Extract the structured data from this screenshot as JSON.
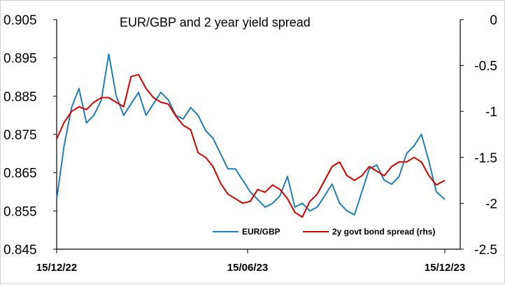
{
  "chart_data": {
    "type": "line",
    "title": "EUR/GBP and 2 year yield spread",
    "xlabel": "",
    "ylabel": "",
    "x_ticks": [
      "15/12/22",
      "15/06/23",
      "15/12/23"
    ],
    "y_left": {
      "range": [
        0.845,
        0.905
      ],
      "ticks": [
        "0.905",
        "0.895",
        "0.885",
        "0.875",
        "0.865",
        "0.855",
        "0.845"
      ]
    },
    "y_right": {
      "range": [
        -2.5,
        0
      ],
      "ticks": [
        "0",
        "-0.5",
        "-1",
        "-1.5",
        "-2",
        "-2.5"
      ]
    },
    "grid": false,
    "legend_position": "bottom-right",
    "series": [
      {
        "name": "EUR/GBP",
        "axis": "left",
        "color": "#1f7fb5",
        "x": [
          "2022-12-15",
          "2022-12-22",
          "2022-12-29",
          "2023-01-05",
          "2023-01-12",
          "2023-01-19",
          "2023-01-26",
          "2023-02-02",
          "2023-02-09",
          "2023-02-16",
          "2023-02-23",
          "2023-03-02",
          "2023-03-09",
          "2023-03-16",
          "2023-03-23",
          "2023-03-30",
          "2023-04-06",
          "2023-04-13",
          "2023-04-20",
          "2023-04-27",
          "2023-05-04",
          "2023-05-11",
          "2023-05-18",
          "2023-05-25",
          "2023-06-01",
          "2023-06-08",
          "2023-06-15",
          "2023-06-22",
          "2023-06-29",
          "2023-07-06",
          "2023-07-13",
          "2023-07-20",
          "2023-07-27",
          "2023-08-03",
          "2023-08-10",
          "2023-08-17",
          "2023-08-24",
          "2023-08-31",
          "2023-09-07",
          "2023-09-14",
          "2023-09-21",
          "2023-09-28",
          "2023-10-05",
          "2023-10-12",
          "2023-10-19",
          "2023-10-26",
          "2023-11-02",
          "2023-11-09",
          "2023-11-16",
          "2023-11-23",
          "2023-11-30",
          "2023-12-07",
          "2023-12-15"
        ],
        "values": [
          0.858,
          0.872,
          0.882,
          0.887,
          0.878,
          0.88,
          0.884,
          0.896,
          0.885,
          0.88,
          0.883,
          0.886,
          0.88,
          0.883,
          0.886,
          0.884,
          0.88,
          0.879,
          0.882,
          0.88,
          0.876,
          0.874,
          0.87,
          0.866,
          0.866,
          0.863,
          0.86,
          0.858,
          0.856,
          0.857,
          0.859,
          0.864,
          0.856,
          0.857,
          0.855,
          0.856,
          0.859,
          0.862,
          0.857,
          0.855,
          0.854,
          0.86,
          0.866,
          0.867,
          0.863,
          0.862,
          0.864,
          0.87,
          0.872,
          0.875,
          0.868,
          0.86,
          0.858
        ]
      },
      {
        "name": "2y govt bond spread (rhs)",
        "axis": "right",
        "color": "#d40000",
        "x": [
          "2022-12-15",
          "2022-12-22",
          "2022-12-29",
          "2023-01-05",
          "2023-01-12",
          "2023-01-19",
          "2023-01-26",
          "2023-02-02",
          "2023-02-09",
          "2023-02-16",
          "2023-02-23",
          "2023-03-02",
          "2023-03-09",
          "2023-03-16",
          "2023-03-23",
          "2023-03-30",
          "2023-04-06",
          "2023-04-13",
          "2023-04-20",
          "2023-04-27",
          "2023-05-04",
          "2023-05-11",
          "2023-05-18",
          "2023-05-25",
          "2023-06-01",
          "2023-06-08",
          "2023-06-15",
          "2023-06-22",
          "2023-06-29",
          "2023-07-06",
          "2023-07-13",
          "2023-07-20",
          "2023-07-27",
          "2023-08-03",
          "2023-08-10",
          "2023-08-17",
          "2023-08-24",
          "2023-08-31",
          "2023-09-07",
          "2023-09-14",
          "2023-09-21",
          "2023-09-28",
          "2023-10-05",
          "2023-10-12",
          "2023-10-19",
          "2023-10-26",
          "2023-11-02",
          "2023-11-09",
          "2023-11-16",
          "2023-11-23",
          "2023-11-30",
          "2023-12-07",
          "2023-12-15"
        ],
        "values": [
          -1.3,
          -1.12,
          -1.0,
          -0.95,
          -0.98,
          -0.9,
          -0.85,
          -0.85,
          -0.9,
          -0.95,
          -0.62,
          -0.6,
          -0.75,
          -0.85,
          -0.9,
          -0.92,
          -1.05,
          -1.15,
          -1.2,
          -1.45,
          -1.5,
          -1.6,
          -1.78,
          -1.9,
          -1.95,
          -2.0,
          -1.98,
          -1.85,
          -1.88,
          -1.8,
          -1.85,
          -1.95,
          -2.1,
          -2.15,
          -1.98,
          -1.9,
          -1.75,
          -1.6,
          -1.55,
          -1.7,
          -1.75,
          -1.7,
          -1.6,
          -1.65,
          -1.7,
          -1.6,
          -1.55,
          -1.55,
          -1.5,
          -1.55,
          -1.7,
          -1.8,
          -1.75
        ]
      }
    ]
  }
}
